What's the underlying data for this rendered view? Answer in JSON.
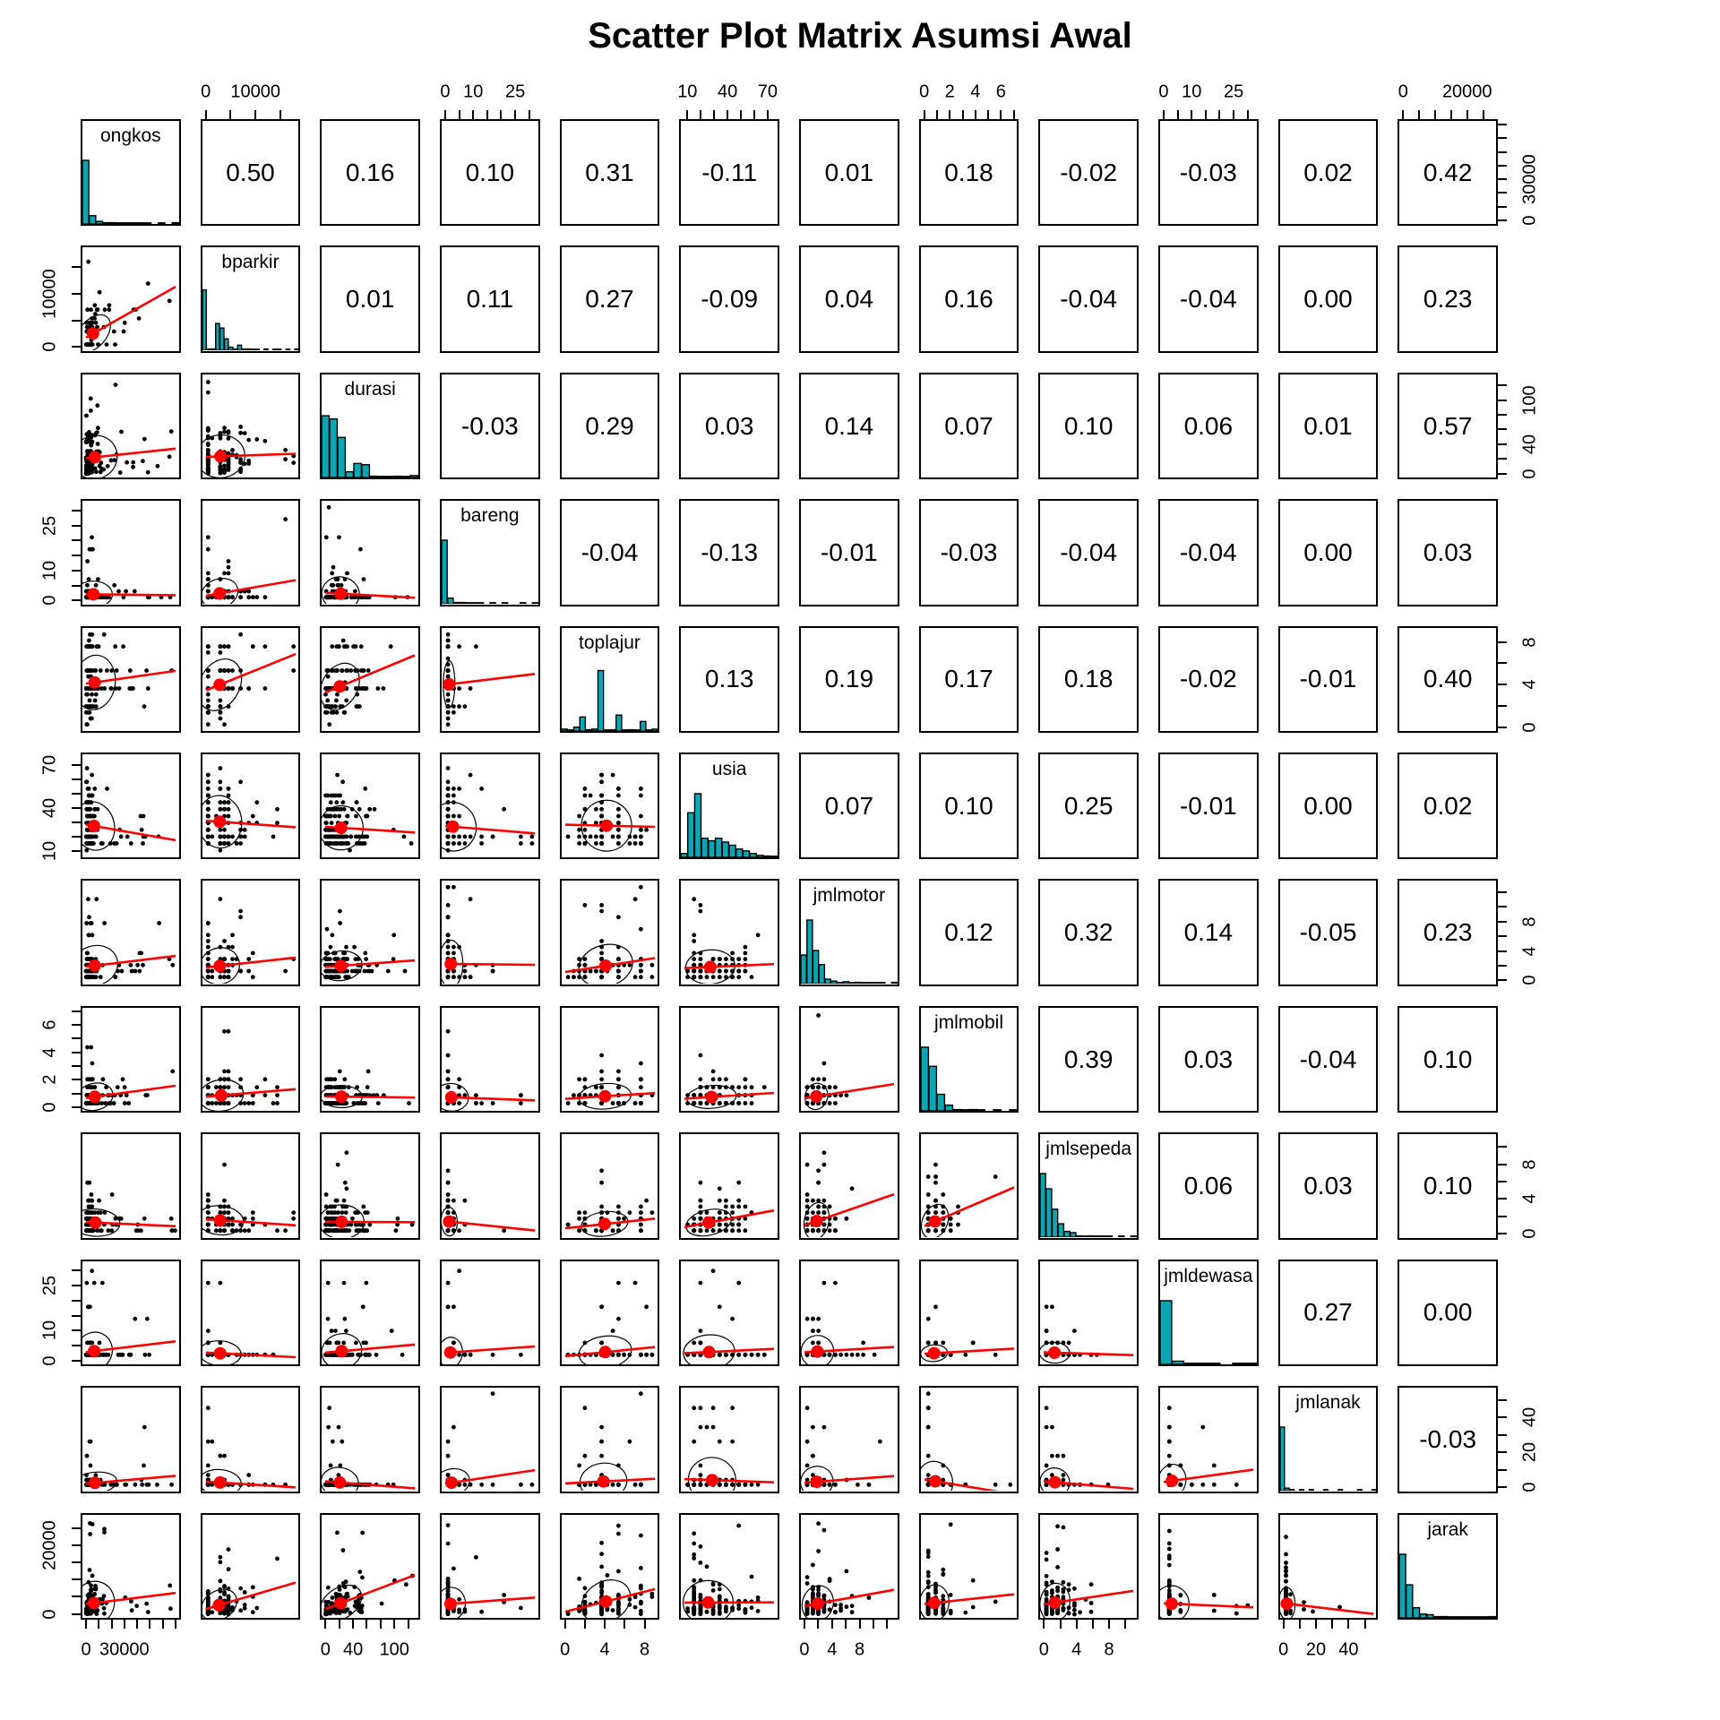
{
  "chart_data": {
    "type": "scatterplot-matrix",
    "title": "Scatter Plot Matrix Asumsi Awal",
    "layout_hints": {
      "grid_rows": 12,
      "grid_cols": 12,
      "diagonal": "histogram with variable name",
      "upper_triangle": "pearson correlation coefficient",
      "lower_triangle": "scatterplot with red trend line, red mean point and black correlation ellipse",
      "axes": "tick labels alternate: top on even columns, bottom on odd columns, left on even rows, right on odd rows"
    },
    "scatter_points_per_panel": 150,
    "variables": [
      {
        "name": "ongkos",
        "range": [
          0,
          70000
        ],
        "tick_step": 10000,
        "tick_labels": [
          0,
          30000
        ],
        "discrete": false,
        "hist": [
          1.0,
          0.13,
          0.04,
          0.02,
          0.02,
          0.01,
          0.01,
          0.01,
          0.01,
          0.01,
          0,
          0.01,
          0,
          0.02
        ]
      },
      {
        "name": "bparkir",
        "range": [
          0,
          18000
        ],
        "tick_step": 5000,
        "tick_labels": [
          0,
          10000
        ],
        "discrete": true,
        "hist": [
          0.95,
          0.02,
          0.02,
          0.42,
          0.35,
          0.18,
          0.05,
          0.02,
          0.08,
          0.02,
          0.02,
          0.01,
          0.01,
          0,
          0.02,
          0,
          0.01,
          0.01,
          0,
          0.01,
          0,
          0.02
        ]
      },
      {
        "name": "durasi",
        "range": [
          0,
          130
        ],
        "tick_step": 20,
        "tick_labels": [
          0,
          40,
          100
        ],
        "discrete": false,
        "hist": [
          0.97,
          0.92,
          0.63,
          0.09,
          0.22,
          0.2,
          0.02,
          0.01,
          0.01,
          0.02,
          0.01,
          0.03
        ]
      },
      {
        "name": "bareng",
        "range": [
          0,
          32
        ],
        "tick_step": 5,
        "tick_labels": [
          0,
          10,
          25
        ],
        "discrete": true,
        "hist": [
          1.0,
          0.09,
          0.02,
          0.02,
          0.01,
          0.01,
          0.01,
          0,
          0.01,
          0,
          0.01,
          0,
          0,
          0.01,
          0,
          0.01
        ]
      },
      {
        "name": "toplajur",
        "range": [
          0,
          9
        ],
        "tick_step": 2,
        "tick_labels": [
          0,
          4,
          8
        ],
        "discrete": true,
        "hist": [
          0.03,
          0.01,
          0.06,
          0.22,
          0.02,
          0.03,
          0.95,
          0.01,
          0.02,
          0.25,
          0.01,
          0.02,
          0.01,
          0.15,
          0.01,
          0.03
        ]
      },
      {
        "name": "usia",
        "range": [
          8,
          75
        ],
        "tick_step": 10,
        "tick_labels": [
          10,
          40,
          70
        ],
        "discrete": true,
        "hist": [
          0.06,
          0.7,
          1.0,
          0.3,
          0.26,
          0.3,
          0.24,
          0.19,
          0.13,
          0.1,
          0.06,
          0.03,
          0.02,
          0.01
        ]
      },
      {
        "name": "jmlmotor",
        "range": [
          0,
          13
        ],
        "tick_step": 2,
        "tick_labels": [
          0,
          4,
          8
        ],
        "discrete": true,
        "hist": [
          0.45,
          1.0,
          0.52,
          0.3,
          0.07,
          0.04,
          0.02,
          0.03,
          0.01,
          0.02,
          0.01,
          0.01,
          0.01,
          0.01,
          0,
          0.02
        ]
      },
      {
        "name": "jmlmobil",
        "range": [
          0,
          7
        ],
        "tick_step": 1,
        "tick_labels": [
          0,
          2,
          4,
          6
        ],
        "discrete": true,
        "hist": [
          1.0,
          0.7,
          0.26,
          0.09,
          0.02,
          0.01,
          0.02,
          0.01,
          0,
          0.01,
          0,
          0.01
        ]
      },
      {
        "name": "jmlsepeda",
        "range": [
          0,
          11
        ],
        "tick_step": 2,
        "tick_labels": [
          0,
          4,
          8
        ],
        "discrete": true,
        "hist": [
          1.0,
          0.76,
          0.44,
          0.21,
          0.09,
          0.07,
          0.02,
          0.01,
          0.02,
          0.01,
          0.01,
          0.01,
          0,
          0.01,
          0,
          0.01
        ]
      },
      {
        "name": "jmldewasa",
        "range": [
          0,
          32
        ],
        "tick_step": 5,
        "tick_labels": [
          0,
          10,
          25
        ],
        "discrete": true,
        "hist": [
          1.0,
          0.05,
          0.01,
          0.01,
          0.01,
          0,
          0.01,
          0.01
        ]
      },
      {
        "name": "jmlanak",
        "range": [
          0,
          55
        ],
        "tick_step": 10,
        "tick_labels": [
          0,
          20,
          40
        ],
        "discrete": true,
        "hist": [
          1.0,
          0.04,
          0.01,
          0,
          0.01,
          0,
          0.01,
          0,
          0,
          0.01,
          0,
          0,
          0.01,
          0,
          0,
          0,
          0.01,
          0,
          0,
          0.01
        ]
      },
      {
        "name": "jarak",
        "range": [
          0,
          28000
        ],
        "tick_step": 5000,
        "tick_labels": [
          0,
          20000
        ],
        "discrete": false,
        "hist": [
          1.0,
          0.52,
          0.16,
          0.06,
          0.05,
          0.02,
          0.02,
          0.01,
          0.01,
          0.01,
          0.01,
          0.01,
          0.01,
          0.02
        ]
      }
    ],
    "correlations_upper": [
      [
        0.5,
        0.16,
        0.1,
        0.31,
        -0.11,
        0.01,
        0.18,
        -0.02,
        -0.03,
        0.02,
        0.42
      ],
      [
        0.01,
        0.11,
        0.27,
        -0.09,
        0.04,
        0.16,
        -0.04,
        -0.04,
        0.0,
        0.23
      ],
      [
        -0.03,
        0.29,
        0.03,
        0.14,
        0.07,
        0.1,
        0.06,
        0.01,
        0.57
      ],
      [
        -0.04,
        -0.13,
        -0.01,
        -0.03,
        -0.04,
        -0.04,
        0.0,
        0.03
      ],
      [
        0.13,
        0.19,
        0.17,
        0.18,
        -0.02,
        -0.01,
        0.4
      ],
      [
        0.07,
        0.1,
        0.25,
        -0.01,
        0.0,
        0.02
      ],
      [
        0.12,
        0.32,
        0.14,
        -0.05,
        0.23
      ],
      [
        0.39,
        0.03,
        -0.04,
        0.1
      ],
      [
        0.06,
        0.03,
        0.1
      ],
      [
        0.27,
        0.0
      ],
      [
        -0.03
      ]
    ],
    "style": {
      "hist_fill": "#0aa6b4",
      "hist_stroke": "#000000",
      "point_color": "#000000",
      "trend_line_color": "#ff0000",
      "mean_point_color": "#ff0000",
      "ellipse_color": "#000000",
      "panel_border_color": "#000000",
      "background": "#ffffff"
    }
  }
}
